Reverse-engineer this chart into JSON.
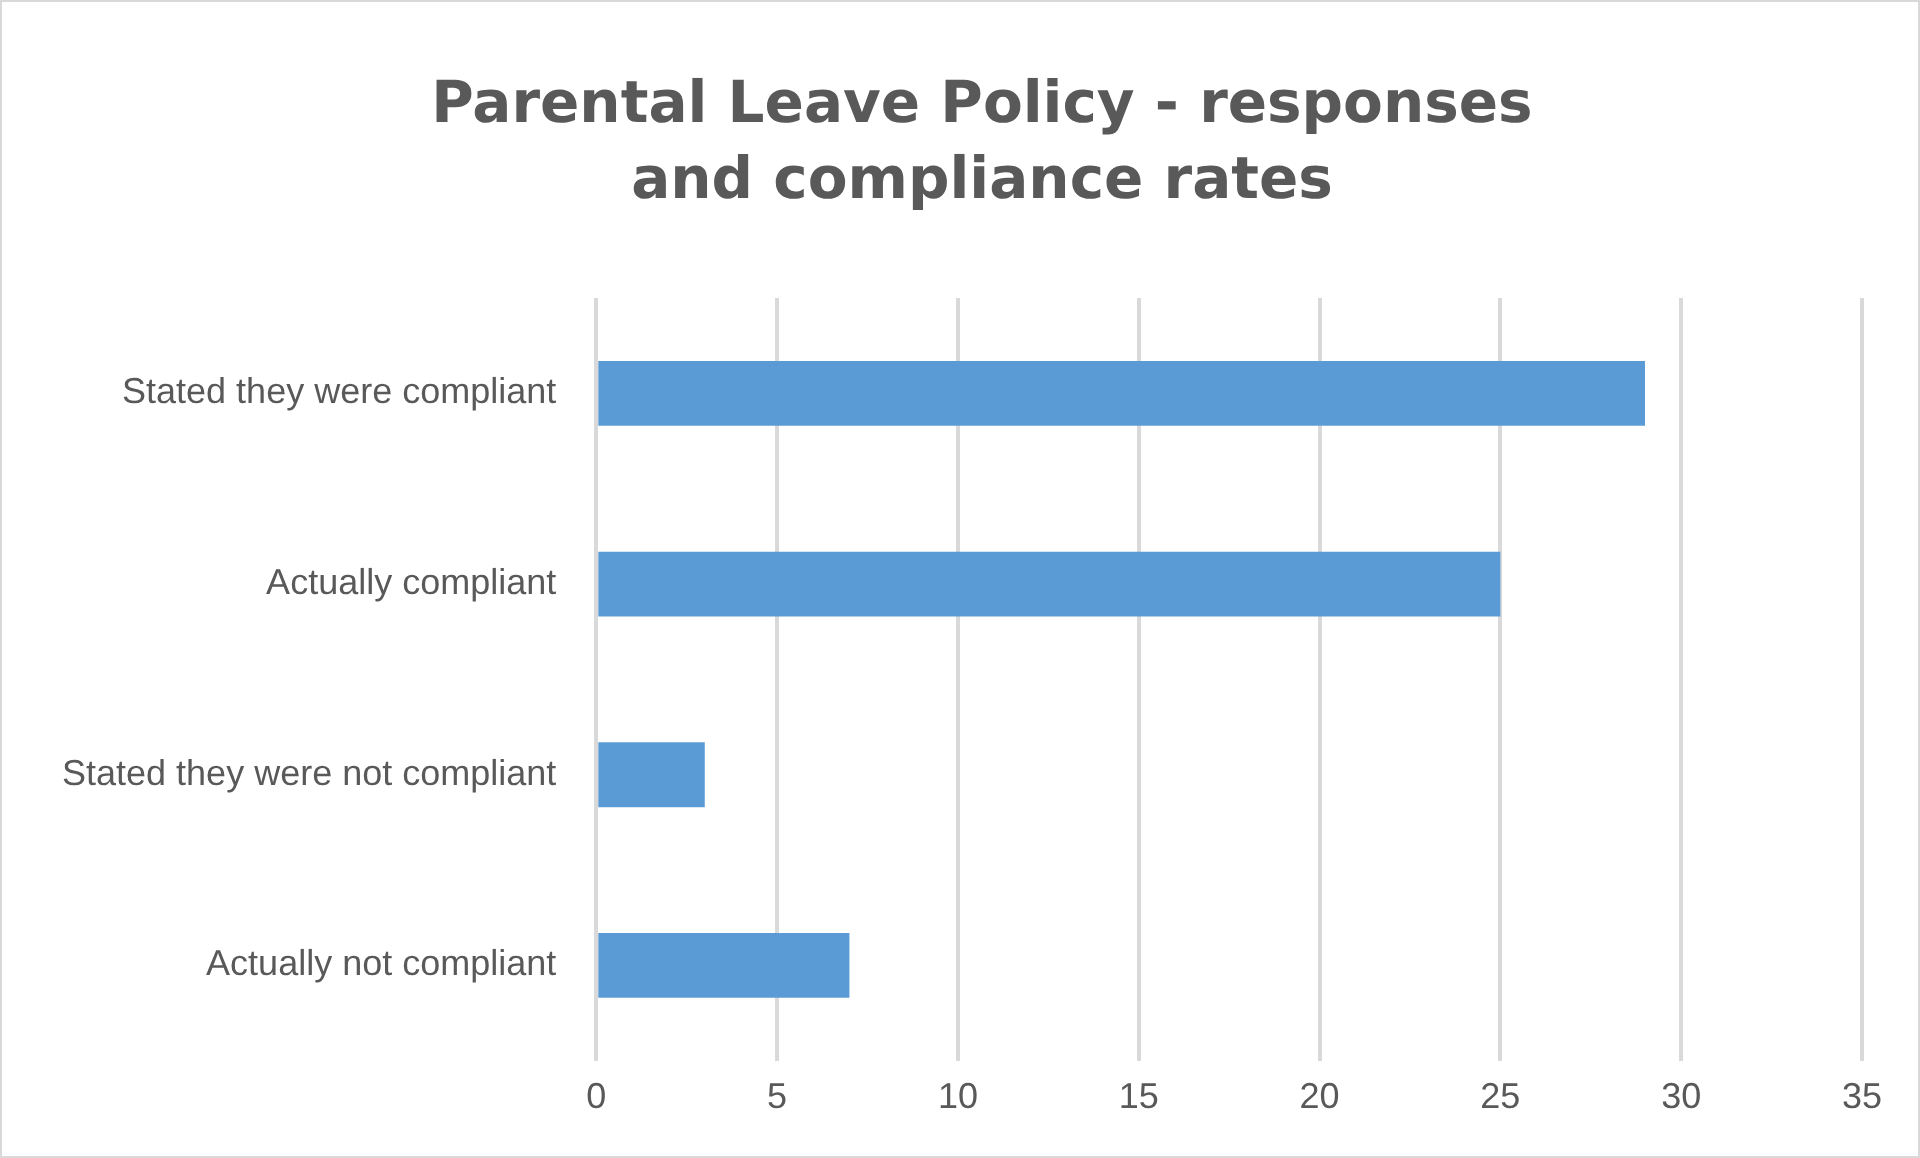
{
  "chart_data": {
    "type": "bar",
    "orientation": "horizontal",
    "title": "Parental Leave Policy - responses and compliance rates",
    "categories": [
      "Stated they were compliant",
      "Actually compliant",
      "Stated they were not compliant",
      "Actually not compliant"
    ],
    "values": [
      29,
      25,
      3,
      7
    ],
    "color": "#5b9bd5",
    "xlim": [
      0,
      35
    ],
    "xticks": [
      0,
      5,
      10,
      15,
      20,
      25,
      30,
      35
    ],
    "grid": "x"
  }
}
